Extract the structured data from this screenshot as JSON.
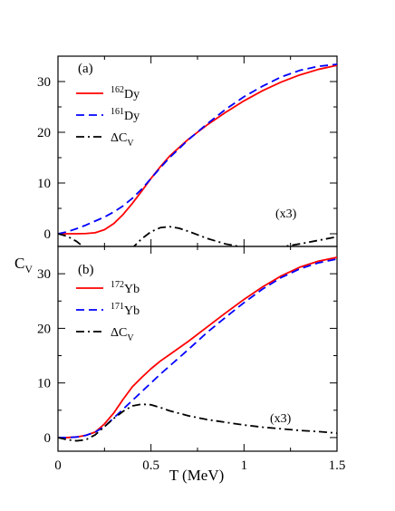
{
  "figure": {
    "ylabel": "C",
    "ylabel_sub": "V",
    "xlabel": "T (MeV)"
  },
  "chart_data": [
    {
      "type": "line",
      "panel_label": "(a)",
      "annotation": "(x3)",
      "xlim": [
        0,
        1.5
      ],
      "ylim": [
        -2.5,
        35
      ],
      "xticks": [
        "0",
        "0.5",
        "1",
        "1.5"
      ],
      "yticks": [
        "0",
        "10",
        "20",
        "30"
      ],
      "legend_position": "top-left",
      "series": [
        {
          "name_sup": "162",
          "name_main": "Dy",
          "name_sub": "",
          "color": "#ff0000",
          "style": "solid",
          "x": [
            0,
            0.05,
            0.1,
            0.15,
            0.2,
            0.25,
            0.3,
            0.35,
            0.4,
            0.45,
            0.5,
            0.55,
            0.6,
            0.7,
            0.8,
            0.9,
            1.0,
            1.1,
            1.2,
            1.3,
            1.4,
            1.5
          ],
          "y": [
            0,
            0,
            0,
            0.05,
            0.2,
            0.8,
            2.0,
            3.8,
            6.0,
            8.4,
            10.9,
            13.2,
            15.3,
            18.6,
            21.4,
            23.9,
            26.2,
            28.2,
            29.9,
            31.3,
            32.4,
            33.2
          ]
        },
        {
          "name_sup": "161",
          "name_main": "Dy",
          "name_sub": "",
          "color": "#0000ff",
          "style": "dashed",
          "x": [
            0,
            0.05,
            0.1,
            0.15,
            0.2,
            0.25,
            0.3,
            0.35,
            0.4,
            0.45,
            0.5,
            0.55,
            0.6,
            0.7,
            0.8,
            0.9,
            1.0,
            1.1,
            1.2,
            1.3,
            1.4,
            1.5
          ],
          "y": [
            0,
            0.4,
            1.0,
            1.7,
            2.5,
            3.3,
            4.3,
            5.5,
            7.0,
            8.8,
            10.9,
            13.0,
            15.0,
            18.5,
            21.6,
            24.5,
            27.0,
            29.1,
            30.9,
            32.2,
            33.0,
            33.4
          ]
        },
        {
          "name_sup": "",
          "name_main": "ΔC",
          "name_sub": "V",
          "color": "#000000",
          "style": "dashdot",
          "x": [
            0,
            0.05,
            0.1,
            0.15,
            0.2,
            0.25,
            0.28,
            0.3,
            0.35,
            0.4,
            0.45,
            0.5,
            0.55,
            0.6,
            0.65,
            0.7,
            0.8,
            0.9,
            1.0,
            1.1,
            1.2,
            1.3,
            1.4,
            1.5
          ],
          "y": [
            0,
            -0.5,
            -1.5,
            -3.0,
            -4.5,
            -5.6,
            -5.8,
            -5.6,
            -4.5,
            -2.8,
            -1.0,
            0.4,
            1.2,
            1.4,
            1.1,
            0.5,
            -0.9,
            -2.0,
            -2.7,
            -2.8,
            -2.6,
            -2.0,
            -1.3,
            -0.6
          ]
        }
      ]
    },
    {
      "type": "line",
      "panel_label": "(b)",
      "annotation": "(x3)",
      "xlim": [
        0,
        1.5
      ],
      "ylim": [
        -2.5,
        35
      ],
      "xticks": [
        "0",
        "0.5",
        "1",
        "1.5"
      ],
      "yticks": [
        "0",
        "10",
        "20",
        "30"
      ],
      "legend_position": "top-left",
      "series": [
        {
          "name_sup": "172",
          "name_main": "Yb",
          "name_sub": "",
          "color": "#ff0000",
          "style": "solid",
          "x": [
            0,
            0.05,
            0.1,
            0.15,
            0.2,
            0.25,
            0.3,
            0.35,
            0.4,
            0.45,
            0.5,
            0.55,
            0.6,
            0.7,
            0.8,
            0.9,
            1.0,
            1.1,
            1.2,
            1.3,
            1.4,
            1.5
          ],
          "y": [
            0,
            0,
            0.1,
            0.4,
            1.0,
            2.5,
            4.5,
            7.0,
            9.3,
            11.0,
            12.6,
            14.0,
            15.2,
            17.6,
            20.2,
            22.8,
            25.3,
            27.6,
            29.6,
            31.2,
            32.3,
            33.0
          ]
        },
        {
          "name_sup": "171",
          "name_main": "Yb",
          "name_sub": "",
          "color": "#0000ff",
          "style": "dashed",
          "x": [
            0,
            0.05,
            0.1,
            0.15,
            0.2,
            0.25,
            0.3,
            0.35,
            0.4,
            0.45,
            0.5,
            0.55,
            0.6,
            0.7,
            0.8,
            0.9,
            1.0,
            1.1,
            1.2,
            1.3,
            1.4,
            1.5
          ],
          "y": [
            0,
            0,
            0.1,
            0.4,
            1.0,
            2.0,
            3.6,
            5.2,
            6.8,
            8.4,
            10.0,
            11.6,
            13.1,
            16.1,
            19.2,
            22.0,
            24.7,
            27.2,
            29.3,
            30.9,
            32.0,
            32.7
          ]
        },
        {
          "name_sup": "",
          "name_main": "ΔC",
          "name_sub": "V",
          "color": "#000000",
          "style": "dashdot",
          "x": [
            0,
            0.05,
            0.1,
            0.15,
            0.2,
            0.25,
            0.3,
            0.35,
            0.4,
            0.45,
            0.5,
            0.55,
            0.6,
            0.7,
            0.8,
            0.9,
            1.0,
            1.1,
            1.2,
            1.3,
            1.4,
            1.5
          ],
          "y": [
            0,
            -0.4,
            -0.6,
            -0.4,
            0.5,
            2.0,
            3.5,
            4.8,
            5.8,
            6.1,
            6.0,
            5.5,
            4.9,
            4.0,
            3.3,
            2.8,
            2.3,
            1.9,
            1.6,
            1.3,
            1.1,
            0.8
          ]
        }
      ]
    }
  ]
}
